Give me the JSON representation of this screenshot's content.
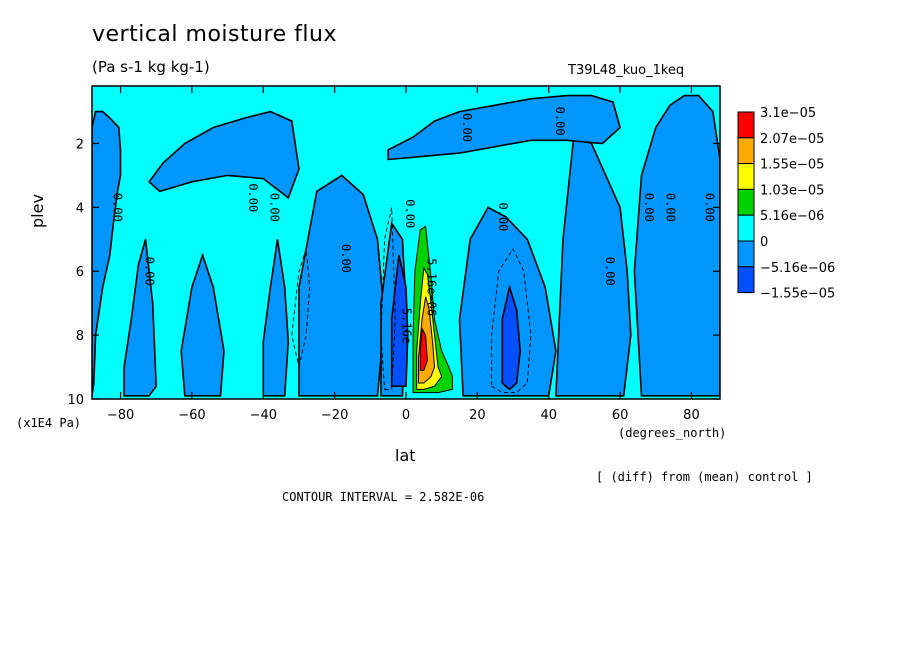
{
  "header": {
    "title": "vertical moisture flux",
    "units": "(Pa s-1 kg kg-1)",
    "experiment": "T39L48_kuo_1keq"
  },
  "footer": {
    "diff_note": "[ (diff) from (mean) control ]",
    "contour_interval": "CONTOUR INTERVAL = 2.582E-06"
  },
  "colors": {
    "background_fill": "#00ffff",
    "negative_1": "#0096ff",
    "negative_2": "#0050ff",
    "positive_1": "#00d200",
    "positive_2": "#ffff00",
    "positive_3": "#ffaa00",
    "positive_4": "#ff0000"
  },
  "chart_data": {
    "type": "heatmap",
    "title": "vertical moisture flux",
    "xlabel": "lat",
    "xunits": "(degrees_north)",
    "ylabel": "plev",
    "yunits": "(x1E4 Pa)",
    "xlim": [
      -88,
      88
    ],
    "ylim": [
      0.2,
      10
    ],
    "y_inverted": true,
    "xticks": [
      -80,
      -60,
      -40,
      -20,
      0,
      20,
      40,
      60,
      80
    ],
    "xtick_labels": [
      "−80",
      "−60",
      "−40",
      "−20",
      "0",
      "20",
      "40",
      "60",
      "80"
    ],
    "yticks": [
      2,
      4,
      6,
      8,
      10
    ],
    "ytick_labels": [
      "2",
      "4",
      "6",
      "8",
      "10"
    ],
    "colorbar": {
      "levels": [
        "3.1e−05",
        "2.07e−05",
        "1.55e−05",
        "1.03e−05",
        "5.16e−06",
        "0",
        "−5.16e−06",
        "−1.55e−05"
      ],
      "colors": [
        "#ff0000",
        "#ffaa00",
        "#ffff00",
        "#00d200",
        "#00ffff",
        "#0096ff",
        "#0050ff"
      ]
    },
    "contour_labels": [
      {
        "text": "0.00",
        "x": -82,
        "y": 4.0
      },
      {
        "text": "0.00",
        "x": -73,
        "y": 6.0
      },
      {
        "text": "0.00",
        "x": -44,
        "y": 3.7
      },
      {
        "text": "0.00",
        "x": -38,
        "y": 4.0
      },
      {
        "text": "0.00",
        "x": -18,
        "y": 5.6
      },
      {
        "text": "0.00",
        "x": 0,
        "y": 4.2
      },
      {
        "text": "0.00",
        "x": 16,
        "y": 1.5
      },
      {
        "text": "0.00",
        "x": 26,
        "y": 4.3
      },
      {
        "text": "0.00",
        "x": 42,
        "y": 1.3
      },
      {
        "text": "0.00",
        "x": 56,
        "y": 6.0
      },
      {
        "text": "0.00",
        "x": 67,
        "y": 4.0
      },
      {
        "text": "0.00",
        "x": 73,
        "y": 4.0
      },
      {
        "text": "0.00",
        "x": 84,
        "y": 4.0
      },
      {
        "text": "5.16e−06",
        "x": 6,
        "y": 6.5
      },
      {
        "text": "−5.16e",
        "x": -1,
        "y": 7.6
      }
    ],
    "regions": [
      {
        "level": "negative_1",
        "x": [
          -88,
          -87.5,
          -87,
          -85,
          -83,
          -82,
          -81,
          -80,
          -80,
          -80.5,
          -83,
          -85,
          -87,
          -88
        ],
        "y": [
          9.9,
          9.5,
          8,
          6.5,
          5.5,
          4.5,
          3.6,
          3,
          2.2,
          1.5,
          1.2,
          1.0,
          1.0,
          1.5
        ]
      },
      {
        "level": "negative_1",
        "x": [
          -79,
          -77,
          -74,
          -72,
          -70,
          -71,
          -73,
          -75,
          -77,
          -79
        ],
        "y": [
          9.9,
          9.9,
          9.9,
          9.9,
          9.6,
          7,
          5,
          5.8,
          7.5,
          9.0
        ]
      },
      {
        "level": "negative_1",
        "x": [
          -62,
          -58,
          -55,
          -52,
          -51,
          -54,
          -57,
          -60,
          -63
        ],
        "y": [
          9.9,
          9.9,
          9.9,
          9.9,
          8.5,
          6.5,
          5.5,
          6.5,
          8.5
        ]
      },
      {
        "level": "negative_1",
        "x": [
          -69,
          -60,
          -50,
          -40,
          -33,
          -30,
          -32,
          -38,
          -45,
          -54,
          -62,
          -68,
          -72
        ],
        "y": [
          3.5,
          3.2,
          3.0,
          3.1,
          3.7,
          2.8,
          1.3,
          1.0,
          1.2,
          1.5,
          2.0,
          2.6,
          3.2
        ]
      },
      {
        "level": "negative_1",
        "x": [
          -40,
          -37,
          -34,
          -33,
          -34,
          -36,
          -38,
          -40
        ],
        "y": [
          9.9,
          9.9,
          9.9,
          8.2,
          6.5,
          5.0,
          6.5,
          8.2
        ]
      },
      {
        "level": "negative_1",
        "x": [
          -30,
          -25,
          -18,
          -12,
          -8,
          -6,
          -8,
          -12,
          -18,
          -25,
          -30
        ],
        "y": [
          9.9,
          9.9,
          9.9,
          9.9,
          9.9,
          7.5,
          5.0,
          3.6,
          3.0,
          3.5,
          6.5
        ]
      },
      {
        "level": "negative_1",
        "x": [
          -7,
          -4,
          -1,
          0,
          -1,
          -4,
          -7
        ],
        "y": [
          9.9,
          9.9,
          9.9,
          7.0,
          5.0,
          4.5,
          7.0
        ]
      },
      {
        "level": "negative_1",
        "x": [
          16,
          20,
          26,
          32,
          36,
          40,
          42,
          39,
          34,
          28,
          23,
          18,
          15
        ],
        "y": [
          9.9,
          9.9,
          9.9,
          9.9,
          9.9,
          9.9,
          8.5,
          6.5,
          5.0,
          4.3,
          4.0,
          5.0,
          7.5
        ]
      },
      {
        "level": "negative_1",
        "x": [
          42,
          47,
          52,
          57,
          61,
          63,
          62,
          60,
          56,
          52,
          47,
          44
        ],
        "y": [
          9.9,
          9.9,
          9.9,
          9.9,
          9.9,
          8.0,
          6.0,
          4.0,
          3.0,
          2.0,
          1.8,
          5.0
        ]
      },
      {
        "level": "negative_1",
        "x": [
          -5,
          5,
          15,
          25,
          35,
          45,
          55,
          60,
          58,
          52,
          45,
          35,
          25,
          15,
          8,
          2,
          -5
        ],
        "y": [
          2.5,
          2.4,
          2.3,
          2.1,
          1.9,
          1.9,
          2.0,
          1.5,
          0.7,
          0.5,
          0.5,
          0.6,
          0.8,
          1.0,
          1.3,
          1.8,
          2.2
        ]
      },
      {
        "level": "negative_1",
        "x": [
          66,
          70,
          74,
          78,
          82,
          88,
          88,
          86,
          82,
          78,
          74,
          70,
          66,
          64
        ],
        "y": [
          9.9,
          9.9,
          9.9,
          9.9,
          9.9,
          9.9,
          2.5,
          1.0,
          0.5,
          0.5,
          0.8,
          1.5,
          3.0,
          6.0
        ]
      },
      {
        "level": "negative_2",
        "x": [
          -4,
          -2,
          0,
          0.5,
          0,
          -2,
          -4
        ],
        "y": [
          9.6,
          9.6,
          9.6,
          8.0,
          6.5,
          5.5,
          7.5
        ]
      },
      {
        "level": "negative_2",
        "x": [
          27,
          29,
          31,
          32,
          31,
          29,
          27
        ],
        "y": [
          9.5,
          9.7,
          9.5,
          8.5,
          7.2,
          6.5,
          7.5
        ]
      },
      {
        "level": "positive_1",
        "x": [
          2,
          3,
          5,
          9,
          13,
          13,
          12,
          10,
          8,
          7,
          5.5,
          4,
          2.5,
          2
        ],
        "y": [
          9.8,
          9.8,
          9.8,
          9.8,
          9.7,
          9.3,
          9.0,
          8.5,
          7.5,
          6.2,
          4.6,
          4.7,
          6.0,
          8.0
        ]
      },
      {
        "level": "positive_2",
        "x": [
          3,
          5,
          8,
          10,
          9,
          8,
          7,
          6,
          5,
          4,
          3
        ],
        "y": [
          9.7,
          9.7,
          9.6,
          9.3,
          9.0,
          8.0,
          7.0,
          6.1,
          5.9,
          7.0,
          8.5
        ]
      },
      {
        "level": "positive_3",
        "x": [
          3.5,
          5,
          7,
          8,
          7.5,
          6.5,
          5.5,
          4.5,
          3.5
        ],
        "y": [
          9.5,
          9.5,
          9.3,
          9.0,
          8.3,
          7.2,
          6.8,
          7.5,
          8.7
        ]
      },
      {
        "level": "positive_4",
        "x": [
          4,
          5,
          6,
          5.5,
          4.5,
          4
        ],
        "y": [
          9.1,
          9.1,
          8.8,
          8.0,
          7.8,
          8.5
        ]
      }
    ],
    "dashed_contours": [
      {
        "x": [
          -30,
          -28,
          -27,
          -28,
          -30,
          -32
        ],
        "y": [
          9.0,
          8.0,
          6.5,
          5.3,
          6.0,
          8.0
        ]
      },
      {
        "x": [
          -6,
          -4,
          -3,
          -4,
          -6,
          -7
        ],
        "y": [
          9.7,
          9.7,
          7.5,
          4.0,
          5.0,
          8.0
        ]
      },
      {
        "x": [
          24,
          27,
          31,
          34,
          35,
          33,
          30,
          26,
          24
        ],
        "y": [
          9.6,
          9.8,
          9.8,
          9.5,
          8.0,
          6.0,
          5.3,
          6.0,
          8.0
        ]
      }
    ]
  }
}
